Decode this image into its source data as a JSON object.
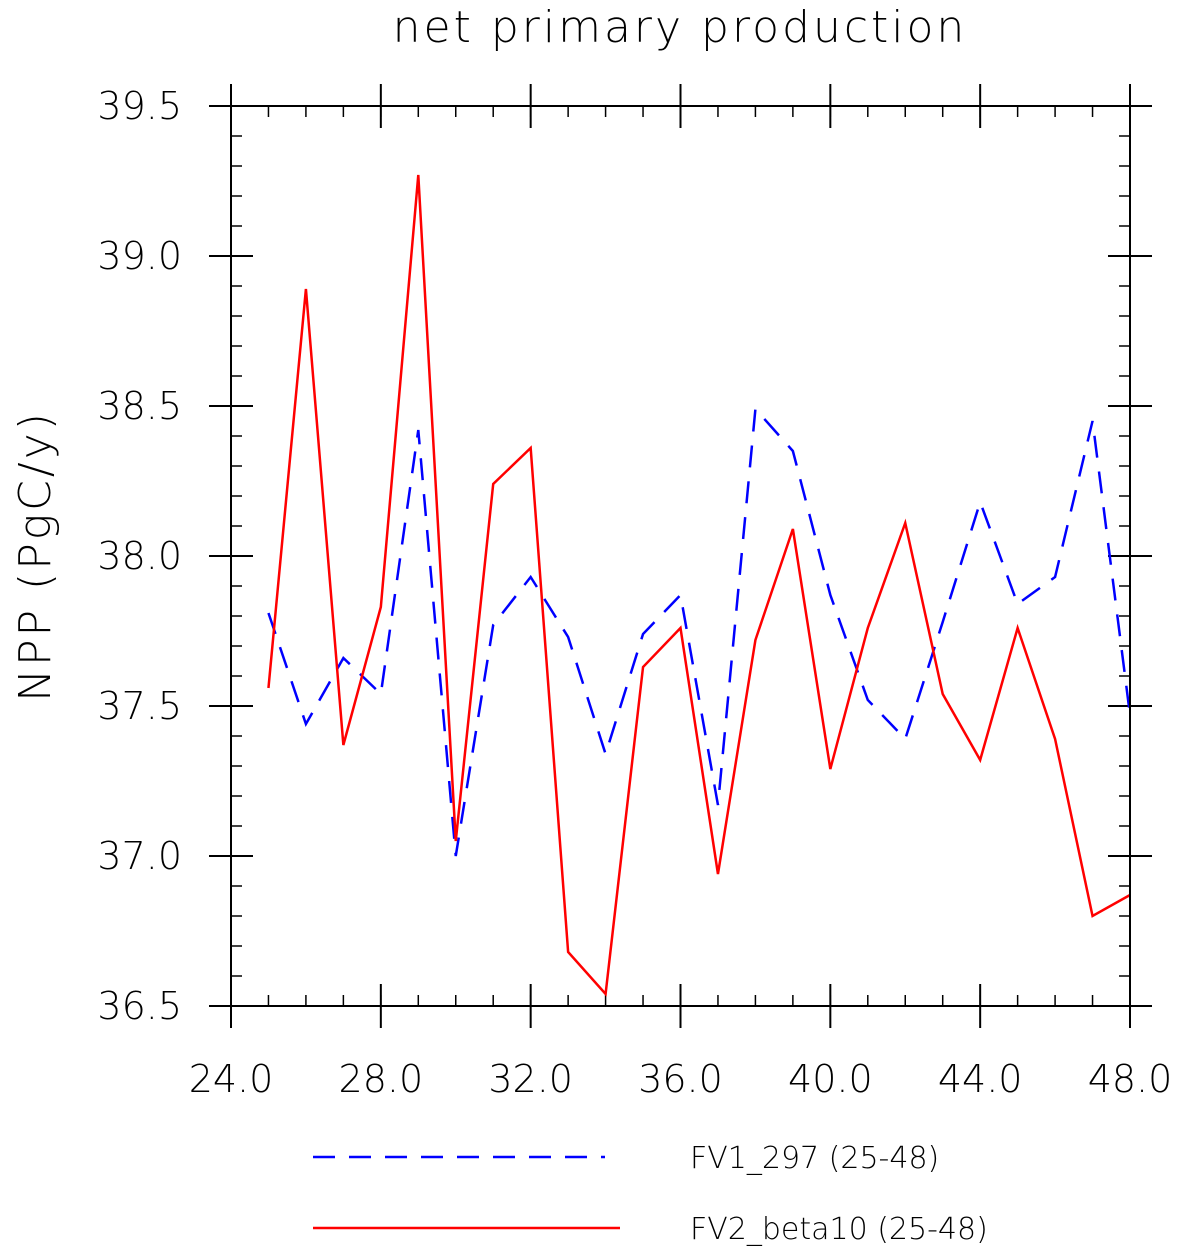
{
  "chart_data": {
    "type": "line",
    "title": "net primary production",
    "xlabel": "",
    "ylabel": "NPP   (PgC/y)",
    "xlim": [
      24.0,
      48.0
    ],
    "ylim": [
      36.5,
      39.5
    ],
    "x_major_ticks": [
      24.0,
      28.0,
      32.0,
      36.0,
      40.0,
      44.0,
      48.0
    ],
    "x_tick_labels": [
      "24.0",
      "28.0",
      "32.0",
      "36.0",
      "40.0",
      "44.0",
      "48.0"
    ],
    "y_major_ticks": [
      36.5,
      37.0,
      37.5,
      38.0,
      38.5,
      39.0,
      39.5
    ],
    "y_tick_labels": [
      "36.5",
      "37.0",
      "37.5",
      "38.0",
      "38.5",
      "39.0",
      "39.5"
    ],
    "x_minor_step": 1.0,
    "y_minor_step": 0.1,
    "grid": false,
    "legend_position": "bottom",
    "x": [
      25,
      26,
      27,
      28,
      29,
      30,
      31,
      32,
      33,
      34,
      35,
      36,
      37,
      38,
      39,
      40,
      41,
      42,
      43,
      44,
      45,
      46,
      47,
      48
    ],
    "series": [
      {
        "name": "FV1_297 (25-48)",
        "color": "#0000ff",
        "style": "dashed",
        "values": [
          37.81,
          37.44,
          37.66,
          37.54,
          38.42,
          37.0,
          37.77,
          37.93,
          37.73,
          37.34,
          37.74,
          37.87,
          37.17,
          38.49,
          38.35,
          37.87,
          37.52,
          37.39,
          37.78,
          38.18,
          37.84,
          37.93,
          38.45,
          37.47
        ]
      },
      {
        "name": "FV2_beta10 (25-48)",
        "color": "#ff0000",
        "style": "solid",
        "values": [
          37.56,
          38.89,
          37.37,
          37.83,
          39.27,
          37.05,
          38.24,
          38.36,
          36.68,
          36.54,
          37.63,
          37.76,
          36.94,
          37.72,
          38.09,
          37.29,
          37.76,
          38.11,
          37.54,
          37.32,
          37.76,
          37.39,
          36.8,
          36.87
        ]
      }
    ]
  }
}
